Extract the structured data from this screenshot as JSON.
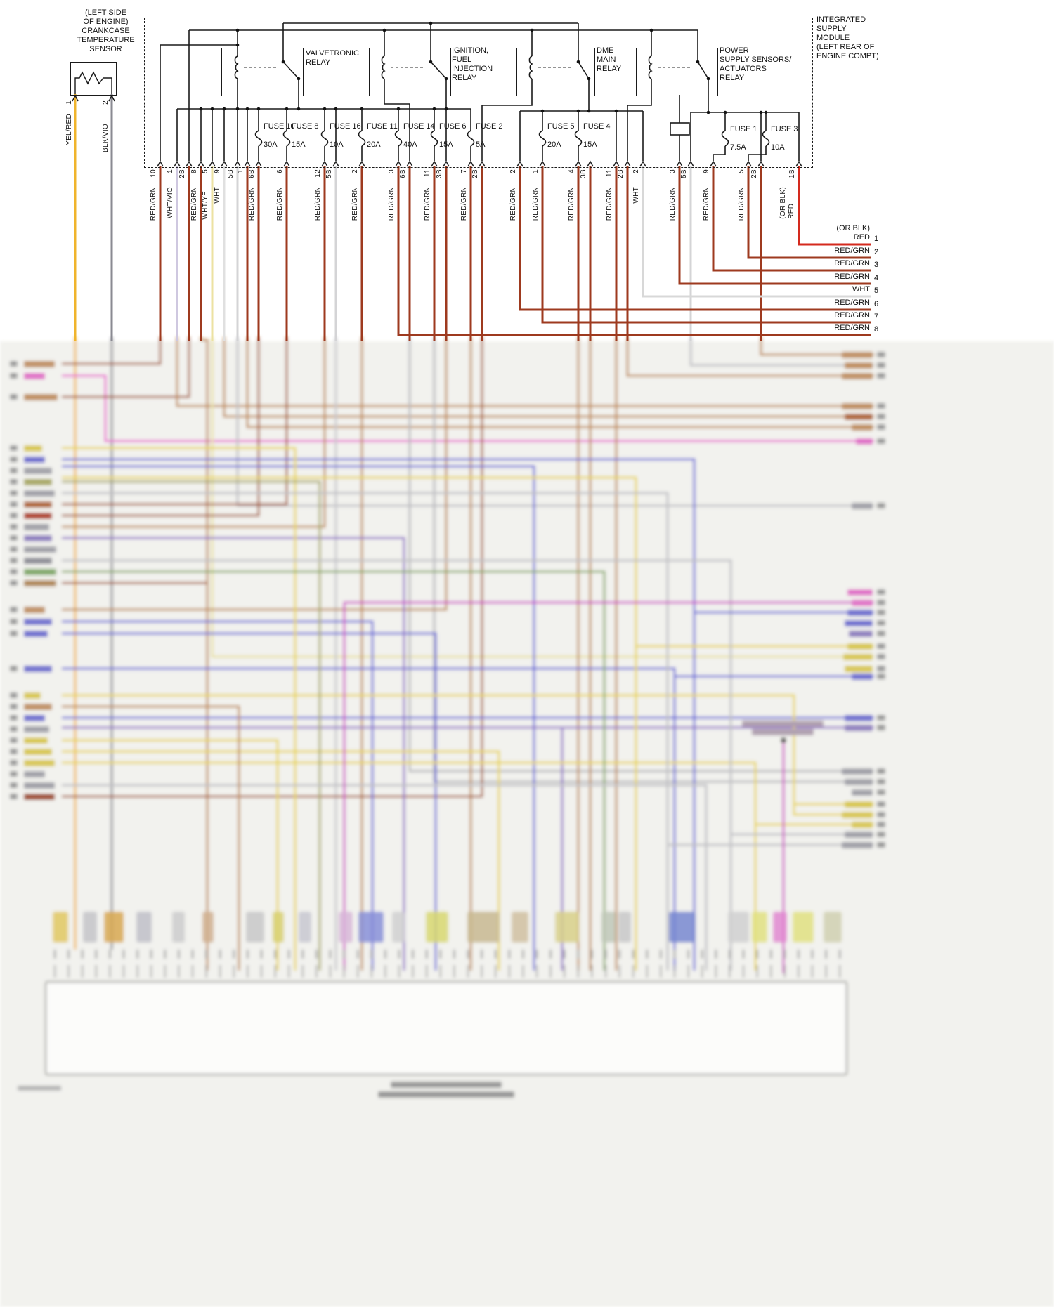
{
  "colors": {
    "red_grn": "#9e3a1f",
    "bright_red": "#d42a1e",
    "wht": "#e0e0e0",
    "wht_vio": "#cfc8e0",
    "wht_yel": "#ece2a2",
    "gray_wire": "#d4d4d6",
    "yel_red": "#f0b42c",
    "blk_vio": "#8a8a92",
    "line_black": "#1a1a1a",
    "pink": "#ea60d0",
    "blue": "#6868d8",
    "yellow": "#e8d44a",
    "tan": "#c08a50"
  },
  "sensor": {
    "label": "(LEFT SIDE\nOF ENGINE)\nCRANKCASE\nTEMPERATURE\nSENSOR",
    "pins": [
      {
        "num": "1",
        "wire": "YEL/RED"
      },
      {
        "num": "2",
        "wire": "BLK/VIO"
      }
    ]
  },
  "module": {
    "title": "INTEGRATED\nSUPPLY\nMODULE\n(LEFT REAR OF\nENGINE COMPT)",
    "relays": [
      {
        "label": "VALVETRONIC\nRELAY"
      },
      {
        "label": "IGNITION,\nFUEL\nINJECTION\nRELAY"
      },
      {
        "label": "DME\nMAIN\nRELAY"
      },
      {
        "label": "POWER\nSUPPLY SENSORS/\nACTUATORS\nRELAY"
      }
    ],
    "fuses": [
      {
        "name": "FUSE 10",
        "rating": "30A"
      },
      {
        "name": "FUSE 8",
        "rating": "15A"
      },
      {
        "name": "FUSE 16",
        "rating": "10A"
      },
      {
        "name": "FUSE 11",
        "rating": "20A"
      },
      {
        "name": "FUSE 14",
        "rating": "40A"
      },
      {
        "name": "FUSE 6",
        "rating": "15A"
      },
      {
        "name": "FUSE 2",
        "rating": "5A"
      },
      {
        "name": "FUSE 5",
        "rating": "20A"
      },
      {
        "name": "FUSE 4",
        "rating": "15A"
      },
      {
        "name": "FUSE 1",
        "rating": "7.5A"
      },
      {
        "name": "FUSE 3",
        "rating": "10A"
      }
    ],
    "pins": [
      {
        "num": "10",
        "color": "RED/GRN"
      },
      {
        "num": "1",
        "color": "WHT/VIO"
      },
      {
        "num": "2B",
        "color": ""
      },
      {
        "num": "8",
        "color": "RED/GRN"
      },
      {
        "num": "5",
        "color": "WHT/YEL"
      },
      {
        "num": "9",
        "color": "WHT"
      },
      {
        "num": "5B",
        "color": ""
      },
      {
        "num": "1",
        "color": ""
      },
      {
        "num": "6B",
        "color": "RED/GRN"
      },
      {
        "num": "6",
        "color": "RED/GRN"
      },
      {
        "num": "12",
        "color": "RED/GRN"
      },
      {
        "num": "5B",
        "color": ""
      },
      {
        "num": "2",
        "color": "RED/GRN"
      },
      {
        "num": "3",
        "color": "RED/GRN"
      },
      {
        "num": "6B",
        "color": ""
      },
      {
        "num": "11",
        "color": "RED/GRN"
      },
      {
        "num": "3B",
        "color": ""
      },
      {
        "num": "7",
        "color": "RED/GRN"
      },
      {
        "num": "2B",
        "color": ""
      },
      {
        "num": "2",
        "color": "RED/GRN"
      },
      {
        "num": "1",
        "color": "RED/GRN"
      },
      {
        "num": "4",
        "color": "RED/GRN"
      },
      {
        "num": "3B",
        "color": ""
      },
      {
        "num": "11",
        "color": "RED/GRN"
      },
      {
        "num": "2B",
        "color": ""
      },
      {
        "num": "2",
        "color": "WHT"
      },
      {
        "num": "3",
        "color": "RED/GRN"
      },
      {
        "num": "5B",
        "color": ""
      },
      {
        "num": "9",
        "color": "RED/GRN"
      },
      {
        "num": "5",
        "color": "RED/GRN"
      },
      {
        "num": "2B",
        "color": ""
      },
      {
        "num": "1B",
        "color": "(OR BLK)\nRED"
      }
    ]
  },
  "right_exits": [
    {
      "num": "1",
      "label": "(OR BLK)\nRED"
    },
    {
      "num": "2",
      "label": "RED/GRN"
    },
    {
      "num": "3",
      "label": "RED/GRN"
    },
    {
      "num": "4",
      "label": "RED/GRN"
    },
    {
      "num": "5",
      "label": "WHT"
    },
    {
      "num": "6",
      "label": "RED/GRN"
    },
    {
      "num": "7",
      "label": "RED/GRN"
    },
    {
      "num": "8",
      "label": "RED/GRN"
    }
  ]
}
